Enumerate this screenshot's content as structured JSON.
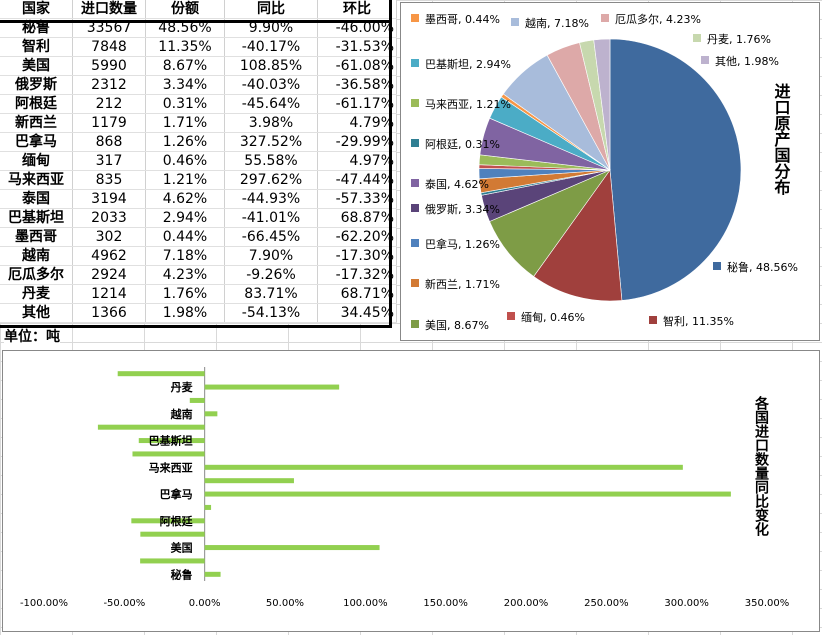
{
  "table": {
    "headers": [
      "国家",
      "进口数量",
      "份额",
      "同比",
      "环比"
    ],
    "rows": [
      [
        "秘鲁",
        "33567",
        "48.56%",
        "9.90%",
        "-46.00%"
      ],
      [
        "智利",
        "7848",
        "11.35%",
        "-40.17%",
        "-31.53%"
      ],
      [
        "美国",
        "5990",
        "8.67%",
        "108.85%",
        "-61.08%"
      ],
      [
        "俄罗斯",
        "2312",
        "3.34%",
        "-40.03%",
        "-36.58%"
      ],
      [
        "阿根廷",
        "212",
        "0.31%",
        "-45.64%",
        "-61.17%"
      ],
      [
        "新西兰",
        "1179",
        "1.71%",
        "3.98%",
        "4.79%"
      ],
      [
        "巴拿马",
        "868",
        "1.26%",
        "327.52%",
        "-29.99%"
      ],
      [
        "缅甸",
        "317",
        "0.46%",
        "55.58%",
        "4.97%"
      ],
      [
        "马来西亚",
        "835",
        "1.21%",
        "297.62%",
        "-47.44%"
      ],
      [
        "泰国",
        "3194",
        "4.62%",
        "-44.93%",
        "-57.33%"
      ],
      [
        "巴基斯坦",
        "2033",
        "2.94%",
        "-41.01%",
        "68.87%"
      ],
      [
        "墨西哥",
        "302",
        "0.44%",
        "-66.45%",
        "-62.20%"
      ],
      [
        "越南",
        "4962",
        "7.18%",
        "7.90%",
        "-17.30%"
      ],
      [
        "厄瓜多尔",
        "2924",
        "4.23%",
        "-9.26%",
        "-17.32%"
      ],
      [
        "丹麦",
        "1214",
        "1.76%",
        "83.71%",
        "68.71%"
      ],
      [
        "其他",
        "1366",
        "1.98%",
        "-54.13%",
        "34.45%"
      ]
    ],
    "unit": "单位：吨"
  },
  "chart_data": [
    {
      "type": "pie",
      "title": "进口原产国分布",
      "categories": [
        "秘鲁",
        "智利",
        "美国",
        "俄罗斯",
        "阿根廷",
        "新西兰",
        "巴拿马",
        "缅甸",
        "马来西亚",
        "泰国",
        "巴基斯坦",
        "墨西哥",
        "越南",
        "厄瓜多尔",
        "丹麦",
        "其他"
      ],
      "values": [
        48.56,
        11.35,
        8.67,
        3.34,
        0.31,
        1.71,
        1.26,
        0.46,
        1.21,
        4.62,
        2.94,
        0.44,
        7.18,
        4.23,
        1.76,
        1.98
      ],
      "labels": [
        "秘鲁, 48.56%",
        "智利, 11.35%",
        "美国, 8.67%",
        "俄罗斯, 3.34%",
        "阿根廷, 0.31%",
        "新西兰, 1.71%",
        "巴拿马, 1.26%",
        "缅甸, 0.46%",
        "马来西亚, 1.21%",
        "泰国, 4.62%",
        "巴基斯坦, 2.94%",
        "墨西哥, 0.44%",
        "越南, 7.18%",
        "厄瓜多尔, 4.23%",
        "丹麦, 1.76%",
        "其他, 1.98%"
      ],
      "colors": [
        "#3F6A9E",
        "#A0403D",
        "#7E9C46",
        "#5A4479",
        "#2F7F93",
        "#D27A34",
        "#4F81BD",
        "#C0504D",
        "#9BBB59",
        "#8064A2",
        "#4BACC6",
        "#F79646",
        "#A8BCDB",
        "#DDA9A8",
        "#C7D8AE",
        "#BDB2CE"
      ]
    },
    {
      "type": "bar",
      "orientation": "horizontal",
      "title": "各国进口数量同比变化",
      "categories": [
        "秘鲁",
        "智利",
        "美国",
        "俄罗斯",
        "阿根廷",
        "新西兰",
        "巴拿马",
        "缅甸",
        "马来西亚",
        "泰国",
        "巴基斯坦",
        "墨西哥",
        "越南",
        "厄瓜多尔",
        "丹麦",
        "其他"
      ],
      "shown_category_labels": [
        "秘鲁",
        "美国",
        "阿根廷",
        "巴拿马",
        "马来西亚",
        "巴基斯坦",
        "越南",
        "丹麦"
      ],
      "values": [
        9.9,
        -40.17,
        108.85,
        -40.03,
        -45.64,
        3.98,
        327.52,
        55.58,
        297.62,
        -44.93,
        -41.01,
        -66.45,
        7.9,
        -9.26,
        83.71,
        -54.13
      ],
      "xlim": [
        -100,
        350
      ],
      "xticks": [
        "-100.00%",
        "-50.00%",
        "0.00%",
        "50.00%",
        "100.00%",
        "150.00%",
        "200.00%",
        "250.00%",
        "300.00%",
        "350.00%"
      ],
      "color": "#92D050"
    }
  ]
}
